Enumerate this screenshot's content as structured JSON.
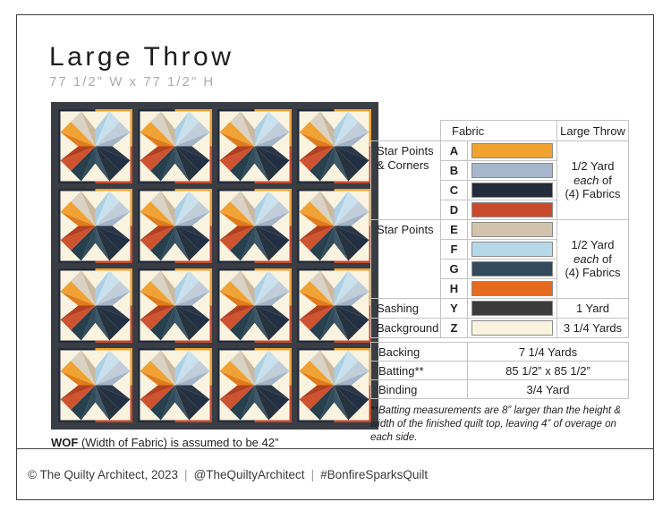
{
  "page": {
    "title": "Large Throw",
    "subtitle": "77 1/2\" W x 77 1/2\" H",
    "wof_bold": "WOF",
    "wof_rest": " (Width of Fabric) is assumed to be 42”",
    "footer": {
      "copyright": "© The Quilty Architect, 2023",
      "separator": "|",
      "handle": "@TheQuiltyArchitect",
      "hashtag": "#BonfireSparksQuilt"
    }
  },
  "palette": {
    "A": "#EFA22E",
    "B": "#A6B7CC",
    "C": "#232C3B",
    "D": "#C8492B",
    "E": "#D2C3AC",
    "F": "#B5D9E9",
    "G": "#33495C",
    "H": "#E56A20",
    "Y": "#3B3B3B",
    "Z": "#FAF3DD",
    "sashing": "#3A3E44",
    "block_background": "#FAF3E0",
    "table_border": "#C3C3C3",
    "swatch_border": "#8A8A8A",
    "title_text": "#1D1D1D",
    "subtitle_text": "#ACACAC"
  },
  "quilt": {
    "rows": 4,
    "cols": 4,
    "frame_colors": {
      "top_left": "C",
      "top_right": "A",
      "bottom_right": "D",
      "bottom_left": "C"
    },
    "star_facets": {
      "up_left_outer": "#DAD3C4",
      "up_left_inner": "#CBB99F",
      "up_right_inner": "#A9D0E5",
      "up_right_outer": "#C9E0ED",
      "right_up_outer": "#C2CDDA",
      "right_up_inner": "#A2B4C8",
      "right_down_inner": "#2B3648",
      "right_down_outer": "#223043",
      "down_right_outer": "#26333F",
      "down_right_inner": "#3D5868",
      "down_left_inner": "#314B5A",
      "down_left_outer": "#27404E",
      "left_down_outer": "#CE5330",
      "left_down_inner": "#B2401F",
      "left_up_inner": "#E07C1D",
      "left_up_outer": "#F0A233"
    }
  },
  "fabric_table": {
    "header": {
      "fabric": "Fabric",
      "size": "Large Throw"
    },
    "groups": [
      {
        "label_lines": [
          "Star Points",
          "& Corners"
        ],
        "fabrics": [
          "A",
          "B",
          "C",
          "D"
        ],
        "yardage": {
          "line1": "1/2 Yard",
          "italic": "each",
          "rest": " of",
          "line2": "(4) Fabrics"
        }
      },
      {
        "label_lines": [
          "Star Points"
        ],
        "fabrics": [
          "E",
          "F",
          "G",
          "H"
        ],
        "yardage": {
          "line1": "1/2 Yard",
          "italic": "each",
          "rest": " of",
          "line2": "(4) Fabrics"
        }
      },
      {
        "label_lines": [
          "Sashing"
        ],
        "fabrics": [
          "Y"
        ],
        "yardage": {
          "line1": "1 Yard"
        }
      },
      {
        "label_lines": [
          "Background"
        ],
        "fabrics": [
          "Z"
        ],
        "yardage": {
          "line1": "3 1/4 Yards"
        }
      }
    ]
  },
  "finishing_table": {
    "rows": [
      {
        "label": "Backing",
        "value": "7 1/4 Yards"
      },
      {
        "label": "Batting**",
        "value": "85 1/2” x 85 1/2”"
      },
      {
        "label": "Binding",
        "value": "3/4 Yard"
      }
    ],
    "note": "**Batting measurements are 8” larger than the height & width of the finished quilt top, leaving 4” of overage on each side."
  }
}
